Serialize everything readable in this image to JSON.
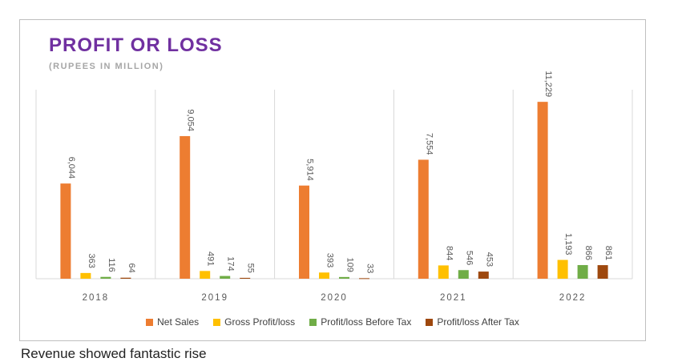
{
  "chart_data": {
    "type": "bar",
    "title": "PROFIT OR LOSS",
    "subtitle": "(RUPEES IN MILLION)",
    "categories": [
      "2018",
      "2019",
      "2020",
      "2021",
      "2022"
    ],
    "series": [
      {
        "name": "Net Sales",
        "color": "#ed7d31",
        "values": [
          6044,
          9054,
          5914,
          7554,
          11229
        ],
        "labels": [
          "6,044",
          "9,054",
          "5,914",
          "7,554",
          "11,229"
        ]
      },
      {
        "name": "Gross Profit/loss",
        "color": "#ffc000",
        "values": [
          363,
          491,
          393,
          844,
          1193
        ],
        "labels": [
          "363",
          "491",
          "393",
          "844",
          "1,193"
        ]
      },
      {
        "name": "Profit/loss Before Tax",
        "color": "#70ad47",
        "values": [
          116,
          174,
          109,
          546,
          866
        ],
        "labels": [
          "116",
          "174",
          "109",
          "546",
          "866"
        ]
      },
      {
        "name": "Profit/loss After Tax",
        "color": "#9e480e",
        "values": [
          64,
          55,
          33,
          453,
          861
        ],
        "labels": [
          "64",
          "55",
          "33",
          "453",
          "861"
        ]
      }
    ],
    "ylim": [
      0,
      12000
    ],
    "legend_position": "bottom",
    "grid": false
  },
  "footer_text": "Revenue showed fantastic rise"
}
